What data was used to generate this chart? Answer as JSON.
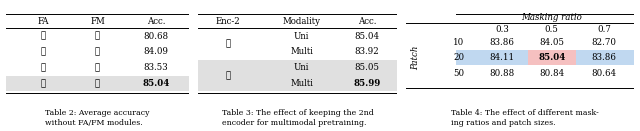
{
  "table2": {
    "headers": [
      "FA",
      "FM",
      "Acc."
    ],
    "rows": [
      [
        "✗",
        "✗",
        "80.68",
        false
      ],
      [
        "✓",
        "✗",
        "84.09",
        false
      ],
      [
        "✗",
        "✓",
        "83.53",
        false
      ],
      [
        "✓",
        "✓",
        "85.04",
        true
      ]
    ],
    "caption": "Table 2: Average accuracy\nwithout FA/FM modules."
  },
  "table3": {
    "headers": [
      "Enc-2",
      "Modality",
      "Acc."
    ],
    "rows": [
      [
        "✗",
        "Uni",
        "85.04",
        false
      ],
      [
        "✗",
        "Multi",
        "83.92",
        false
      ],
      [
        "✓",
        "Uni",
        "85.05",
        true
      ],
      [
        "✓",
        "Multi",
        "85.99",
        true
      ]
    ],
    "caption": "Table 3: The effect of keeping the 2nd\nencoder for multimodal pretraining."
  },
  "table4": {
    "col_header": "Masking ratio",
    "row_header": "Patch",
    "cols": [
      "0.3",
      "0.5",
      "0.7"
    ],
    "rows": [
      [
        "10",
        "83.86",
        "84.05",
        "82.70"
      ],
      [
        "20",
        "84.11",
        "85.04",
        "83.86"
      ],
      [
        "50",
        "80.88",
        "80.84",
        "80.64"
      ]
    ],
    "highlight_cell": [
      1,
      1
    ],
    "caption": "Table 4: The effect of different mask-\ning ratios and patch sizes."
  },
  "highlight_row_color": "#e0e0e0",
  "highlight_cell_pink": "#f5c0c0",
  "highlight_row_blue": "#c0d8f0",
  "background_color": "#ffffff"
}
